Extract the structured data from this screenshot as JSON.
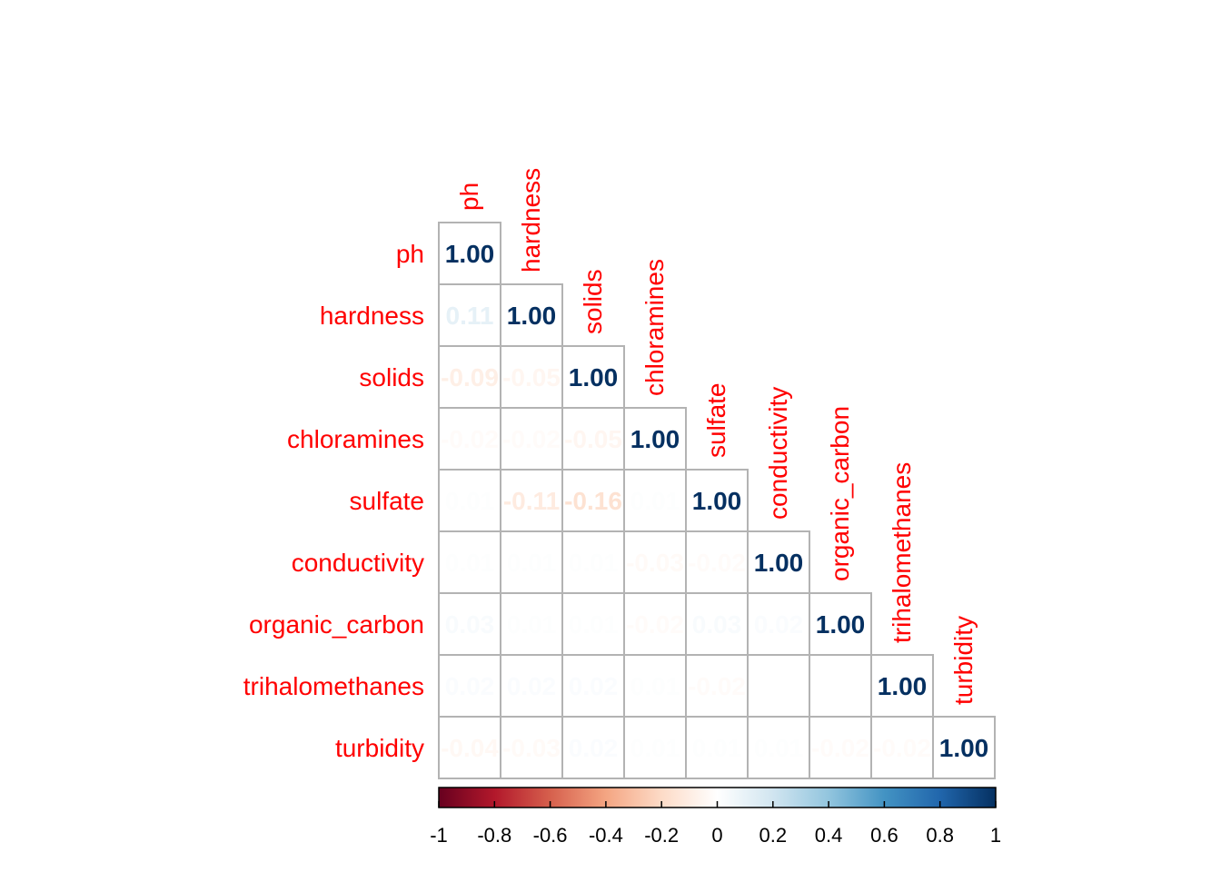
{
  "chart_data": {
    "type": "heatmap",
    "layout": "lower-triangle correlation matrix",
    "variables": [
      "ph",
      "hardness",
      "solids",
      "chloramines",
      "sulfate",
      "conductivity",
      "organic_carbon",
      "trihalomethanes",
      "turbidity"
    ],
    "matrix": [
      [
        1.0
      ],
      [
        0.11,
        1.0
      ],
      [
        -0.09,
        -0.05,
        1.0
      ],
      [
        -0.02,
        -0.02,
        -0.05,
        1.0
      ],
      [
        0.01,
        -0.11,
        -0.16,
        0.01,
        1.0
      ],
      [
        0.01,
        0.01,
        0.01,
        -0.03,
        -0.02,
        1.0
      ],
      [
        0.03,
        0.01,
        0.01,
        -0.02,
        0.03,
        0.02,
        1.0
      ],
      [
        0.02,
        0.02,
        0.02,
        0.01,
        -0.02,
        0.0,
        0.0,
        1.0
      ],
      [
        -0.04,
        -0.03,
        0.02,
        0.01,
        0.01,
        0.01,
        -0.02,
        -0.02,
        1.0
      ]
    ],
    "colorbar": {
      "range": [
        -1,
        1
      ],
      "ticks": [
        "-1",
        "-0.8",
        "-0.6",
        "-0.4",
        "-0.2",
        "0",
        "0.2",
        "0.4",
        "0.6",
        "0.8",
        "1"
      ]
    },
    "colors": {
      "scale": [
        "#67001F",
        "#B2182B",
        "#D6604D",
        "#F4A582",
        "#FDDBC7",
        "#FFFFFF",
        "#D1E5F0",
        "#92C5DE",
        "#4393C3",
        "#2166AC",
        "#053061"
      ],
      "label_color": "#FF0000",
      "grid_color": "#B3B3B3"
    }
  }
}
